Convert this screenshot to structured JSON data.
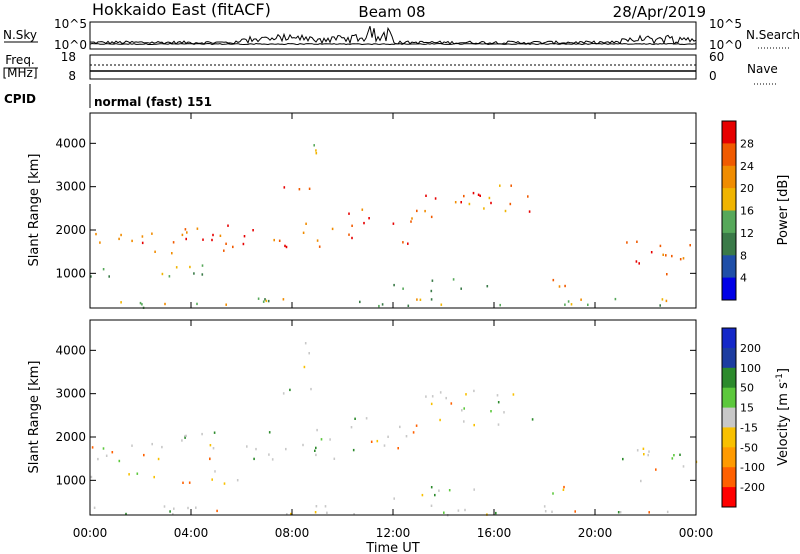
{
  "header": {
    "station": "Hokkaido East (fitACF)",
    "beam": "Beam 08",
    "date": "28/Apr/2019"
  },
  "left_panel_labels": {
    "nsky": "N.Sky",
    "freq": "Freq.",
    "freq_unit": "[MHz]",
    "cpid": "CPID"
  },
  "right_panel_labels": {
    "nsearch": "N.Search",
    "nave": "Nave"
  },
  "noise_panel": {
    "ticks_left": [
      "10^5",
      "10^0"
    ],
    "ticks_right": [
      "10^5",
      "10^0"
    ]
  },
  "freq_panel": {
    "ticks_left": [
      "18",
      "8"
    ],
    "ticks_right": [
      "60",
      "0"
    ]
  },
  "cpid_panel": {
    "text": "normal (fast) 151"
  },
  "colors": {
    "power": [
      "#0000e6",
      "#1f4fa8",
      "#3a7a48",
      "#56a85a",
      "#f0b400",
      "#f08c00",
      "#f05a00",
      "#e60000"
    ],
    "velocity": [
      "#ff0000",
      "#ff6000",
      "#ff9a00",
      "#f8c000",
      "#c8c8c8",
      "#5cc83c",
      "#2c8a2c",
      "#1c3ca0",
      "#1428c8"
    ]
  },
  "chart_data": [
    {
      "type": "heatmap",
      "name": "power",
      "xlabel": "",
      "ylabel": "Slant Range [km]",
      "x_ticks": [
        "00:00",
        "04:00",
        "08:00",
        "12:00",
        "16:00",
        "20:00",
        "00:00"
      ],
      "y_ticks": [
        "1000",
        "2000",
        "3000",
        "4000"
      ],
      "ylim": [
        200,
        4700
      ],
      "colorbar_label": "Power [dB]",
      "colorbar_ticks": [
        "4",
        "8",
        "12",
        "16",
        "20",
        "24",
        "28"
      ],
      "colorbar_range": [
        0,
        32
      ]
    },
    {
      "type": "heatmap",
      "name": "velocity",
      "xlabel": "Time UT",
      "ylabel": "Slant Range [km]",
      "x_ticks": [
        "00:00",
        "04:00",
        "08:00",
        "12:00",
        "16:00",
        "20:00",
        "00:00"
      ],
      "y_ticks": [
        "1000",
        "2000",
        "3000",
        "4000"
      ],
      "ylim": [
        200,
        4700
      ],
      "colorbar_label": "Velocity [m s",
      "colorbar_label_sup": "-1",
      "colorbar_label_end": "]",
      "colorbar_ticks": [
        "200",
        "100",
        "50",
        "15",
        "-15",
        "-50",
        "-100",
        "-200"
      ]
    }
  ]
}
